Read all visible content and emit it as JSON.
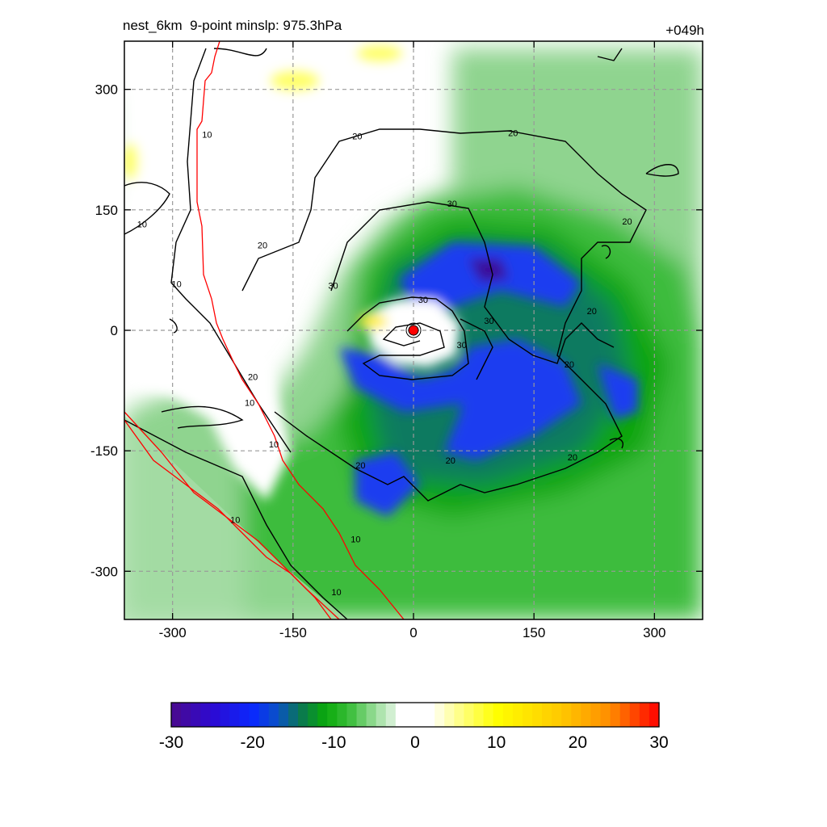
{
  "chart_data": {
    "type": "heatmap",
    "title_left": "nest_6km  9-point minslp: 975.3hPa",
    "title_right": "+049h",
    "xlim": [
      -360,
      360
    ],
    "ylim": [
      -360,
      360
    ],
    "x_ticks": [
      -300,
      -150,
      0,
      150,
      300
    ],
    "y_ticks": [
      -300,
      -150,
      0,
      150,
      300
    ],
    "x_tick_labels": [
      "-300",
      "-150",
      "0",
      "150",
      "300"
    ],
    "y_tick_labels": [
      "-300",
      "-150",
      "0",
      "150",
      "300"
    ],
    "grid": true,
    "storm_center": {
      "x": 0,
      "y": 0,
      "color": "#ff0000"
    },
    "colorbar": {
      "min": -30,
      "max": 30,
      "ticks": [
        -30,
        -20,
        -10,
        0,
        10,
        20,
        30
      ],
      "tick_labels": [
        "-30",
        "-20",
        "-10",
        "0",
        "10",
        "20",
        "30"
      ],
      "stops": [
        {
          "v": -30,
          "c": "#4b0a8c"
        },
        {
          "v": -25,
          "c": "#2d0ad2"
        },
        {
          "v": -20,
          "c": "#0a28ff"
        },
        {
          "v": -17,
          "c": "#0a50c8"
        },
        {
          "v": -14,
          "c": "#0a7850"
        },
        {
          "v": -11,
          "c": "#0aaa0a"
        },
        {
          "v": -8,
          "c": "#3cbe3c"
        },
        {
          "v": -5,
          "c": "#96dc96"
        },
        {
          "v": -2.5,
          "c": "#e0f4e0"
        },
        {
          "v": -2,
          "c": "#ffffff"
        },
        {
          "v": 2,
          "c": "#ffffff"
        },
        {
          "v": 5,
          "c": "#ffff96"
        },
        {
          "v": 10,
          "c": "#ffff00"
        },
        {
          "v": 18,
          "c": "#ffc800"
        },
        {
          "v": 24,
          "c": "#ff8c00"
        },
        {
          "v": 30,
          "c": "#ff0000"
        }
      ]
    },
    "contour_labels": [
      {
        "text": "10",
        "x": -257,
        "y": 244
      },
      {
        "text": "10",
        "x": -338,
        "y": 132
      },
      {
        "text": "10",
        "x": -295,
        "y": 58
      },
      {
        "text": "20",
        "x": -70,
        "y": 242
      },
      {
        "text": "20",
        "x": 124,
        "y": 246
      },
      {
        "text": "30",
        "x": 48,
        "y": 158
      },
      {
        "text": "20",
        "x": -188,
        "y": 106
      },
      {
        "text": "20",
        "x": 266,
        "y": 136
      },
      {
        "text": "30",
        "x": -100,
        "y": 56
      },
      {
        "text": "30",
        "x": 12,
        "y": 38
      },
      {
        "text": "30",
        "x": 94,
        "y": 12
      },
      {
        "text": "20",
        "x": 222,
        "y": 24
      },
      {
        "text": "30",
        "x": 60,
        "y": -18
      },
      {
        "text": "20",
        "x": 194,
        "y": -42
      },
      {
        "text": "20",
        "x": -200,
        "y": -58
      },
      {
        "text": "10",
        "x": -204,
        "y": -90
      },
      {
        "text": "10",
        "x": -174,
        "y": -142
      },
      {
        "text": "20",
        "x": -66,
        "y": -168
      },
      {
        "text": "20",
        "x": 46,
        "y": -162
      },
      {
        "text": "20",
        "x": 198,
        "y": -158
      },
      {
        "text": "10",
        "x": -222,
        "y": -236
      },
      {
        "text": "10",
        "x": -72,
        "y": -260
      },
      {
        "text": "10",
        "x": -96,
        "y": -326
      }
    ]
  }
}
